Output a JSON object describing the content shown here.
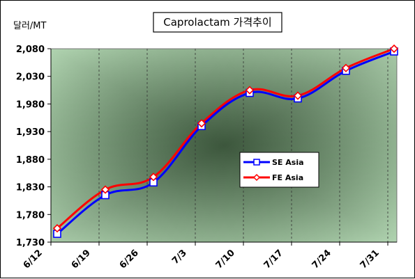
{
  "chart_data": {
    "type": "line",
    "title": "Caprolactam 가격추이",
    "ylabel": "달러/MT",
    "xlabel": "",
    "categories": [
      "6/12",
      "6/19",
      "6/26",
      "7/3",
      "7/10",
      "7/17",
      "7/24",
      "7/31"
    ],
    "yticks": [
      "1,730",
      "1,780",
      "1,830",
      "1,880",
      "1,930",
      "1,980",
      "2,030",
      "2,080"
    ],
    "ylim": [
      1730,
      2080
    ],
    "grid": "vertical dashed",
    "legend_position": "center-right",
    "series": [
      {
        "name": "SE Asia",
        "color": "#0000ff",
        "marker": "square",
        "values": [
          1745,
          1815,
          1838,
          1940,
          2000,
          1990,
          2040,
          2075
        ]
      },
      {
        "name": "FE Asia",
        "color": "#ff0000",
        "marker": "diamond",
        "values": [
          1755,
          1825,
          1848,
          1945,
          2005,
          1995,
          2045,
          2080
        ]
      }
    ],
    "plot_background": {
      "center_color": "#557a55",
      "edge_color": "#ccf5cc"
    }
  }
}
